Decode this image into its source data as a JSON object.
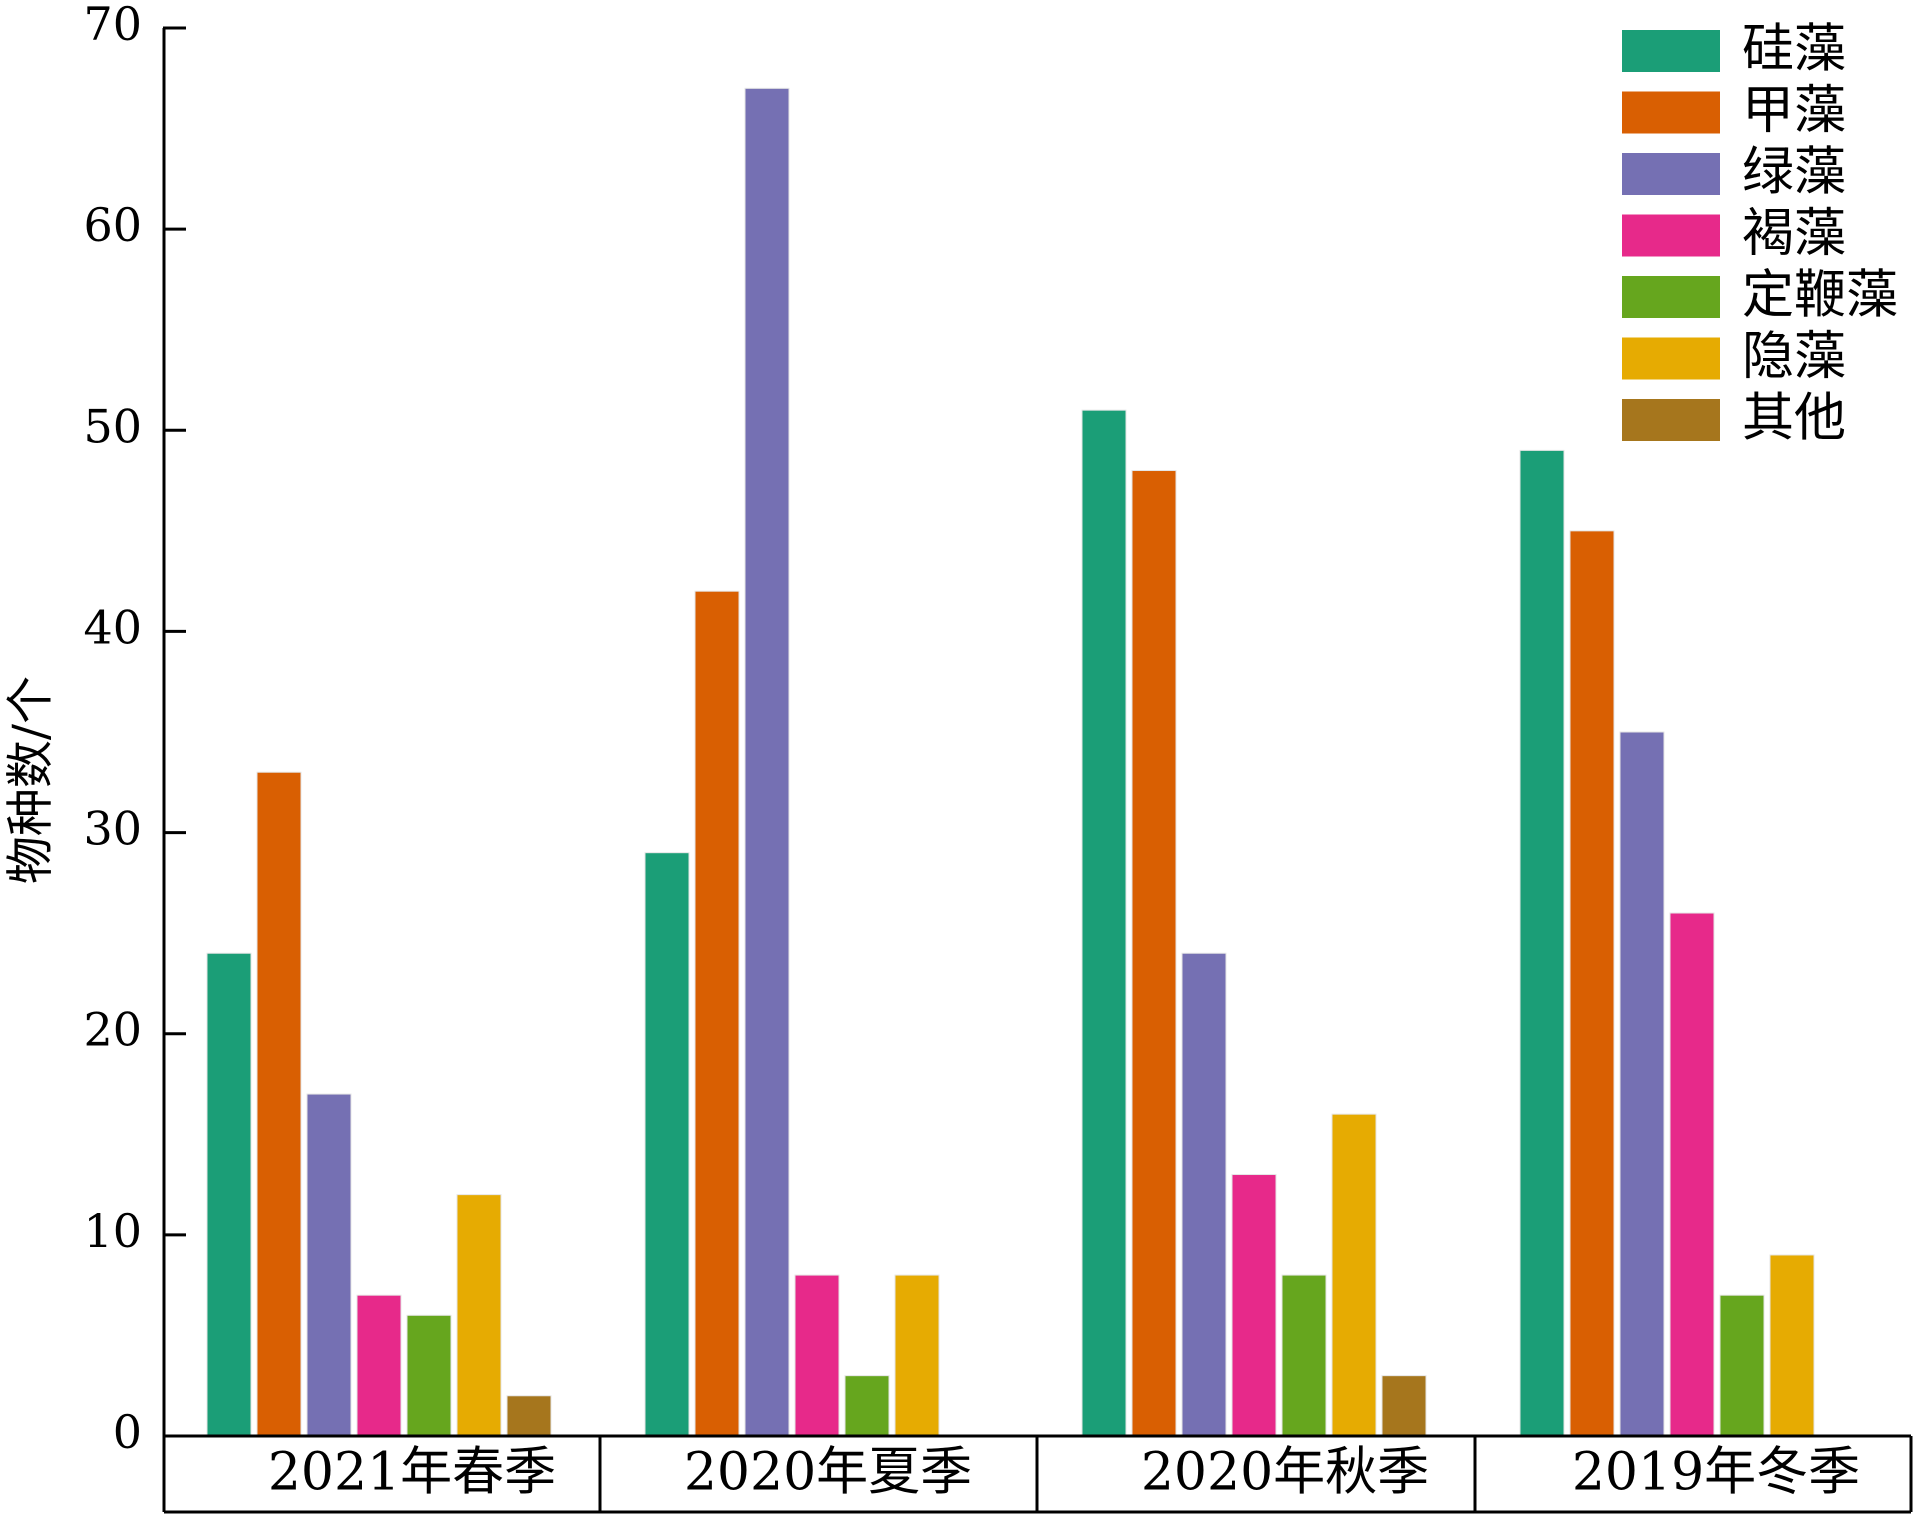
{
  "chart_data": {
    "type": "bar",
    "title": "",
    "xlabel": "",
    "ylabel": "物种数/个",
    "ylim": [
      0,
      70
    ],
    "yticks": [
      0,
      10,
      20,
      30,
      40,
      50,
      60,
      70
    ],
    "grid": false,
    "legend_position": "top-right",
    "categories": [
      "2021年春季",
      "2020年夏季",
      "2020年秋季",
      "2019年冬季"
    ],
    "series": [
      {
        "name": "硅藻",
        "color": "#1b9e77",
        "values": [
          24,
          29,
          51,
          49
        ]
      },
      {
        "name": "甲藻",
        "color": "#d95f02",
        "values": [
          33,
          42,
          48,
          45
        ]
      },
      {
        "name": "绿藻",
        "color": "#7570b3",
        "values": [
          17,
          67,
          24,
          35
        ]
      },
      {
        "name": "褐藻",
        "color": "#e7298a",
        "values": [
          7,
          8,
          13,
          26
        ]
      },
      {
        "name": "定鞭藻",
        "color": "#66a61e",
        "values": [
          6,
          3,
          8,
          7
        ]
      },
      {
        "name": "隐藻",
        "color": "#e6ab02",
        "values": [
          12,
          8,
          16,
          9
        ]
      },
      {
        "name": "其他",
        "color": "#a6761d",
        "values": [
          2,
          0,
          3,
          0
        ]
      }
    ]
  }
}
